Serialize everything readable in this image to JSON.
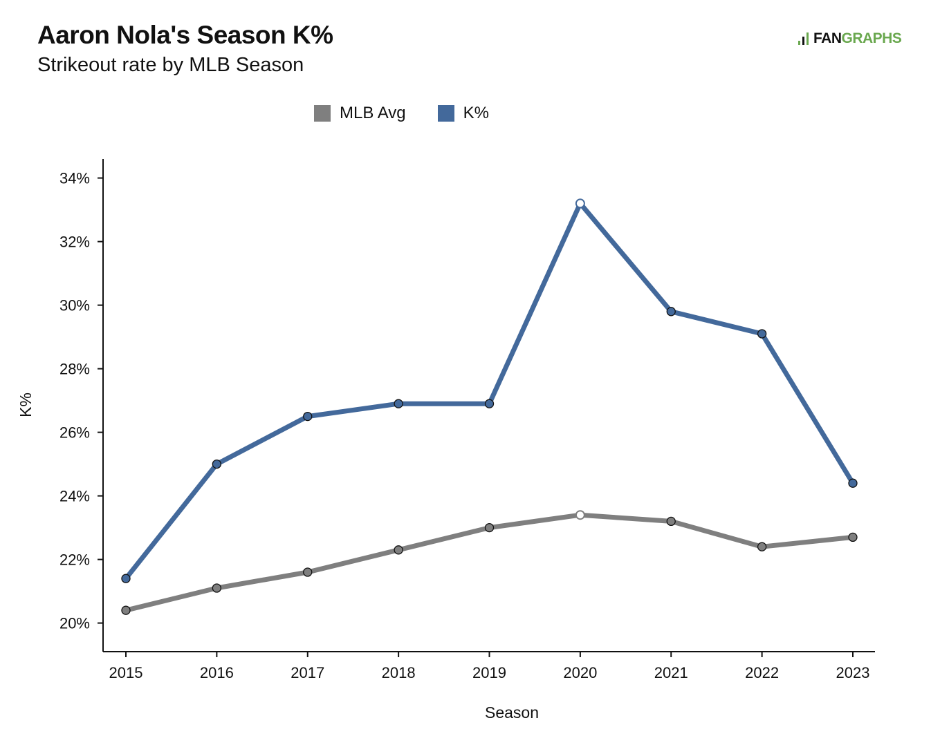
{
  "header": {
    "title": "Aaron Nola's Season K%",
    "subtitle": "Strikeout rate by MLB Season",
    "logo_fan": "FAN",
    "logo_graphs": "GRAPHS"
  },
  "colors": {
    "mlb_avg": "#7f7f7f",
    "k_pct": "#43699b",
    "logo_green": "#6aa84f"
  },
  "chart_data": {
    "type": "line",
    "xlabel": "Season",
    "ylabel": "K%",
    "x": [
      "2015",
      "2016",
      "2017",
      "2018",
      "2019",
      "2020",
      "2021",
      "2022",
      "2023"
    ],
    "ylim": [
      19.1,
      34.6
    ],
    "yticks": [
      20,
      22,
      24,
      26,
      28,
      30,
      32,
      34
    ],
    "ytick_labels": [
      "20%",
      "22%",
      "24%",
      "26%",
      "28%",
      "30%",
      "32%",
      "34%"
    ],
    "legend_position": "top",
    "grid": false,
    "highlight_x": "2020",
    "series": [
      {
        "name": "MLB Avg",
        "color": "#7f7f7f",
        "values": [
          20.4,
          21.1,
          21.6,
          22.3,
          23.0,
          23.4,
          23.2,
          22.4,
          22.7
        ]
      },
      {
        "name": "K%",
        "color": "#43699b",
        "values": [
          21.4,
          25.0,
          26.5,
          26.9,
          26.9,
          33.2,
          29.8,
          29.1,
          24.4
        ]
      }
    ]
  }
}
